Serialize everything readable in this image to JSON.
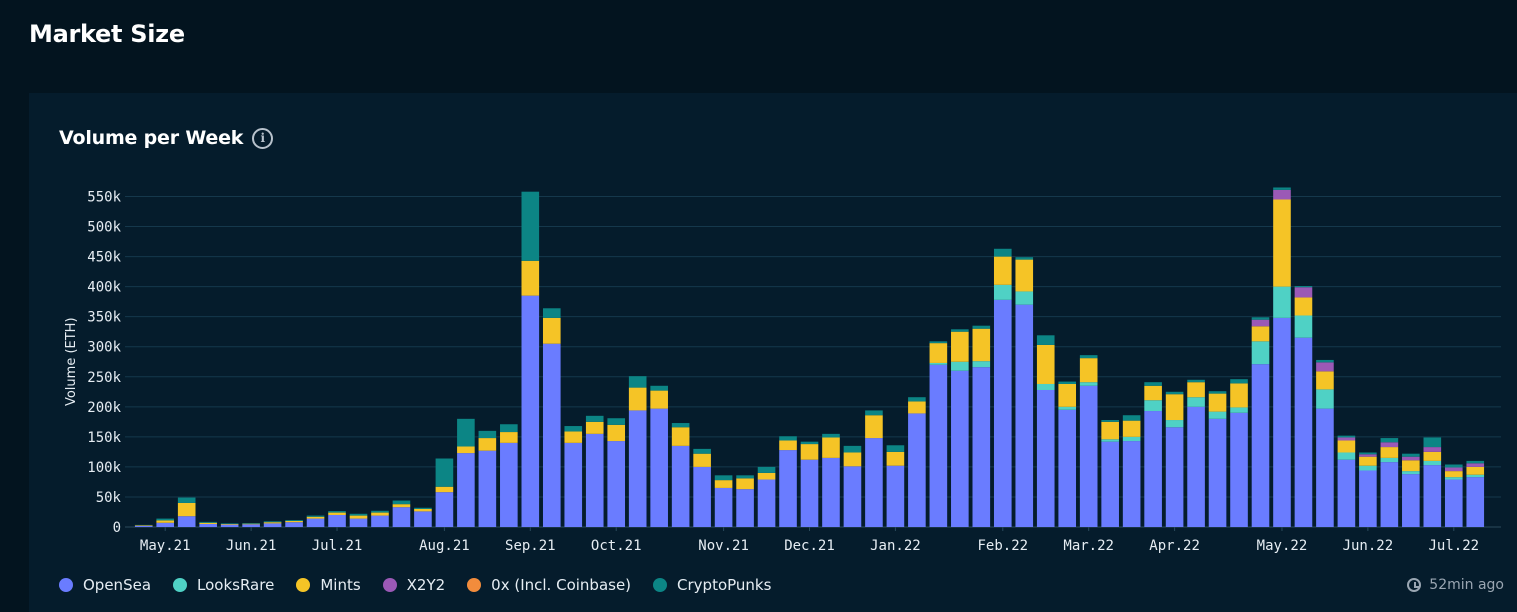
{
  "header": {
    "title": "Market Size"
  },
  "card": {
    "title": "Volume per Week",
    "info_icon": "info-icon"
  },
  "footer": {
    "updated": "52min ago",
    "icon": "clock-icon"
  },
  "colors": {
    "background": "#03141f",
    "card": "#051c2c",
    "grid": "#15384c"
  },
  "chart_data": {
    "type": "bar",
    "stacked": true,
    "ylabel": "Volume (ETH)",
    "ylim": [
      0,
      550000
    ],
    "yticks": [
      0,
      50000,
      100000,
      150000,
      200000,
      250000,
      300000,
      350000,
      400000,
      450000,
      500000,
      550000
    ],
    "ytick_labels": [
      "0",
      "50k",
      "100k",
      "150k",
      "200k",
      "250k",
      "300k",
      "350k",
      "400k",
      "450k",
      "500k",
      "550k"
    ],
    "xtick_labels": [
      {
        "label": "May.21",
        "index": 1
      },
      {
        "label": "Jun.21",
        "index": 5
      },
      {
        "label": "Jul.21",
        "index": 9
      },
      {
        "label": "Aug.21",
        "index": 14
      },
      {
        "label": "Sep.21",
        "index": 18
      },
      {
        "label": "Oct.21",
        "index": 22
      },
      {
        "label": "Nov.21",
        "index": 27
      },
      {
        "label": "Dec.21",
        "index": 31
      },
      {
        "label": "Jan.22",
        "index": 35
      },
      {
        "label": "Feb.22",
        "index": 40
      },
      {
        "label": "Mar.22",
        "index": 44
      },
      {
        "label": "Apr.22",
        "index": 48
      },
      {
        "label": "May.22",
        "index": 53
      },
      {
        "label": "Jun.22",
        "index": 57
      },
      {
        "label": "Jul.22",
        "index": 61
      }
    ],
    "legend_position": "bottom-left",
    "series": [
      {
        "name": "OpenSea",
        "color": "#6a7cff",
        "values": [
          2000,
          7000,
          18000,
          5000,
          4000,
          4500,
          6000,
          8000,
          14000,
          20000,
          14000,
          19000,
          33000,
          26000,
          58000,
          123000,
          127000,
          140000,
          385000,
          305000,
          140000,
          155000,
          143000,
          194000,
          197000,
          135000,
          100000,
          65000,
          63000,
          79000,
          128000,
          112000,
          115000,
          101000,
          148000,
          102000,
          189000,
          270000,
          260000,
          266000,
          378000,
          370000,
          228000,
          195000,
          235000,
          142000,
          143000,
          193000,
          166000,
          200000,
          180000,
          190000,
          271000,
          348000,
          315000,
          197000,
          112000,
          94000,
          108000,
          88000,
          103000,
          79000,
          83000
        ]
      },
      {
        "name": "LooksRare",
        "color": "#4fd1c5",
        "values": [
          0,
          0,
          0,
          0,
          0,
          0,
          0,
          0,
          0,
          0,
          0,
          0,
          0,
          0,
          0,
          0,
          0,
          0,
          0,
          0,
          0,
          0,
          0,
          0,
          0,
          0,
          0,
          0,
          0,
          0,
          0,
          0,
          0,
          0,
          0,
          0,
          0,
          3000,
          15000,
          10000,
          25000,
          22000,
          10000,
          5000,
          6000,
          4000,
          7000,
          18000,
          12000,
          16000,
          12000,
          9000,
          38000,
          52000,
          37000,
          32000,
          12000,
          8000,
          7000,
          5000,
          7000,
          4000,
          4000
        ]
      },
      {
        "name": "Mints",
        "color": "#f5c426",
        "values": [
          1000,
          4000,
          22000,
          2000,
          1000,
          1000,
          2000,
          2000,
          3000,
          4000,
          5000,
          5000,
          5000,
          4000,
          9000,
          11000,
          21000,
          18000,
          58000,
          43000,
          19000,
          20000,
          27000,
          38000,
          30000,
          31000,
          22000,
          13000,
          18000,
          11000,
          16000,
          26000,
          34000,
          23000,
          38000,
          23000,
          20000,
          33000,
          50000,
          54000,
          47000,
          53000,
          65000,
          38000,
          40000,
          29000,
          27000,
          24000,
          43000,
          25000,
          30000,
          40000,
          25000,
          145000,
          30000,
          30000,
          20000,
          15000,
          18000,
          18000,
          15000,
          10000,
          13000
        ]
      },
      {
        "name": "X2Y2",
        "color": "#9b59b6",
        "values": [
          0,
          0,
          0,
          0,
          0,
          0,
          0,
          0,
          0,
          0,
          0,
          0,
          0,
          0,
          0,
          0,
          0,
          0,
          0,
          0,
          0,
          0,
          0,
          0,
          0,
          0,
          0,
          0,
          0,
          0,
          0,
          0,
          0,
          0,
          0,
          0,
          0,
          0,
          0,
          0,
          0,
          0,
          0,
          0,
          0,
          0,
          0,
          0,
          0,
          0,
          0,
          0,
          11000,
          16000,
          17000,
          15000,
          5000,
          4000,
          8000,
          6000,
          8000,
          6000,
          6000
        ]
      },
      {
        "name": "0x (Incl. Coinbase)",
        "color": "#f28c3c",
        "values": [
          0,
          0,
          0,
          0,
          0,
          0,
          0,
          0,
          0,
          0,
          0,
          0,
          0,
          0,
          0,
          0,
          0,
          0,
          0,
          0,
          0,
          0,
          0,
          0,
          0,
          0,
          0,
          0,
          0,
          0,
          0,
          0,
          0,
          0,
          0,
          0,
          0,
          0,
          0,
          0,
          0,
          0,
          0,
          0,
          0,
          0,
          0,
          0,
          0,
          0,
          0,
          0,
          0,
          0,
          0,
          0,
          0,
          0,
          0,
          0,
          0,
          0,
          0
        ]
      },
      {
        "name": "CryptoPunks",
        "color": "#0c8585",
        "values": [
          500,
          3000,
          9000,
          1500,
          1000,
          1000,
          1500,
          1500,
          2000,
          2500,
          3000,
          3000,
          6000,
          2000,
          47000,
          46000,
          12000,
          13000,
          115000,
          16000,
          9000,
          10000,
          11000,
          19000,
          8000,
          7000,
          8000,
          8000,
          5000,
          10000,
          7000,
          4000,
          6000,
          11000,
          8000,
          11000,
          7000,
          3000,
          4000,
          5000,
          13000,
          4000,
          16000,
          4000,
          5000,
          3000,
          9000,
          6000,
          4000,
          4000,
          4000,
          7000,
          4000,
          4000,
          2000,
          4000,
          3000,
          3000,
          7000,
          5000,
          16000,
          5000,
          4000
        ]
      }
    ]
  }
}
